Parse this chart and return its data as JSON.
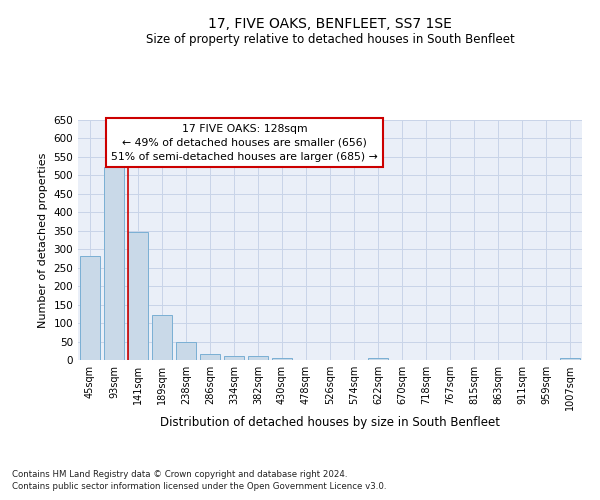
{
  "title": "17, FIVE OAKS, BENFLEET, SS7 1SE",
  "subtitle": "Size of property relative to detached houses in South Benfleet",
  "xlabel": "Distribution of detached houses by size in South Benfleet",
  "ylabel": "Number of detached properties",
  "footnote1": "Contains HM Land Registry data © Crown copyright and database right 2024.",
  "footnote2": "Contains public sector information licensed under the Open Government Licence v3.0.",
  "annotation_line1": "17 FIVE OAKS: 128sqm",
  "annotation_line2": "← 49% of detached houses are smaller (656)",
  "annotation_line3": "51% of semi-detached houses are larger (685) →",
  "bar_color": "#c9d9e8",
  "bar_edge_color": "#7aafd4",
  "marker_color": "#cc0000",
  "categories": [
    "45sqm",
    "93sqm",
    "141sqm",
    "189sqm",
    "238sqm",
    "286sqm",
    "334sqm",
    "382sqm",
    "430sqm",
    "478sqm",
    "526sqm",
    "574sqm",
    "622sqm",
    "670sqm",
    "718sqm",
    "767sqm",
    "815sqm",
    "863sqm",
    "911sqm",
    "959sqm",
    "1007sqm"
  ],
  "values": [
    282,
    523,
    347,
    122,
    49,
    17,
    11,
    10,
    5,
    0,
    0,
    0,
    6,
    0,
    0,
    0,
    0,
    0,
    0,
    0,
    5
  ],
  "ylim": [
    0,
    650
  ],
  "yticks": [
    0,
    50,
    100,
    150,
    200,
    250,
    300,
    350,
    400,
    450,
    500,
    550,
    600,
    650
  ],
  "grid_color": "#c8d4e8",
  "bg_color": "#eaeff8"
}
